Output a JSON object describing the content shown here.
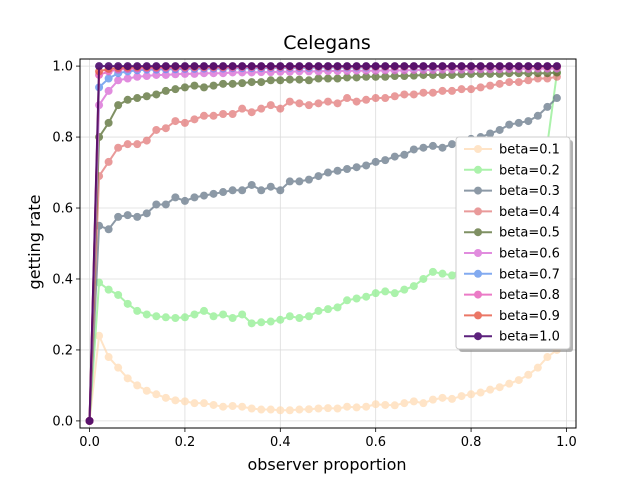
{
  "chart_data": {
    "type": "line",
    "title": "Celegans",
    "xlabel": "observer proportion",
    "ylabel": "getting rate",
    "xlim": [
      -0.02,
      1.02
    ],
    "ylim": [
      -0.02,
      1.02
    ],
    "xticks": [
      "0.0",
      "0.2",
      "0.4",
      "0.6",
      "0.8",
      "1.0"
    ],
    "yticks": [
      "0.0",
      "0.2",
      "0.4",
      "0.6",
      "0.8",
      "1.0"
    ],
    "grid": true,
    "legend_position": "center-right",
    "x": [
      0.0,
      0.02,
      0.04,
      0.06,
      0.08,
      0.1,
      0.12,
      0.14,
      0.16,
      0.18,
      0.2,
      0.22,
      0.24,
      0.26,
      0.28,
      0.3,
      0.32,
      0.34,
      0.36,
      0.38,
      0.4,
      0.42,
      0.44,
      0.46,
      0.48,
      0.5,
      0.52,
      0.54,
      0.56,
      0.58,
      0.6,
      0.62,
      0.64,
      0.66,
      0.68,
      0.7,
      0.72,
      0.74,
      0.76,
      0.78,
      0.8,
      0.82,
      0.84,
      0.86,
      0.88,
      0.9,
      0.92,
      0.94,
      0.96,
      0.98
    ],
    "series": [
      {
        "name": "beta=0.1",
        "color": "#ffdab0",
        "opacity": 0.7,
        "values": [
          0.0,
          0.24,
          0.18,
          0.15,
          0.12,
          0.1,
          0.085,
          0.075,
          0.065,
          0.058,
          0.055,
          0.05,
          0.05,
          0.045,
          0.04,
          0.042,
          0.04,
          0.035,
          0.032,
          0.032,
          0.03,
          0.03,
          0.032,
          0.033,
          0.035,
          0.036,
          0.035,
          0.04,
          0.038,
          0.04,
          0.047,
          0.045,
          0.044,
          0.05,
          0.055,
          0.05,
          0.06,
          0.065,
          0.062,
          0.07,
          0.075,
          0.08,
          0.088,
          0.095,
          0.105,
          0.115,
          0.13,
          0.15,
          0.18,
          0.2
        ]
      },
      {
        "name": "beta=0.2",
        "color": "#90ee90",
        "opacity": 0.75,
        "values": [
          0.0,
          0.39,
          0.37,
          0.355,
          0.33,
          0.31,
          0.3,
          0.295,
          0.292,
          0.29,
          0.292,
          0.3,
          0.31,
          0.295,
          0.3,
          0.29,
          0.3,
          0.275,
          0.278,
          0.28,
          0.285,
          0.295,
          0.29,
          0.295,
          0.31,
          0.315,
          0.32,
          0.34,
          0.345,
          0.35,
          0.36,
          0.365,
          0.36,
          0.37,
          0.38,
          0.4,
          0.42,
          0.415,
          0.41,
          0.43,
          0.45,
          0.47,
          0.48,
          0.5,
          0.52,
          0.55,
          0.6,
          0.7,
          0.78,
          0.98
        ]
      },
      {
        "name": "beta=0.3",
        "color": "#708090",
        "opacity": 0.8,
        "values": [
          0.0,
          0.55,
          0.54,
          0.575,
          0.58,
          0.575,
          0.585,
          0.61,
          0.61,
          0.63,
          0.62,
          0.63,
          0.635,
          0.64,
          0.645,
          0.65,
          0.65,
          0.665,
          0.65,
          0.66,
          0.65,
          0.675,
          0.675,
          0.68,
          0.69,
          0.7,
          0.705,
          0.71,
          0.715,
          0.72,
          0.73,
          0.735,
          0.745,
          0.75,
          0.765,
          0.77,
          0.775,
          0.77,
          0.78,
          0.79,
          0.795,
          0.8,
          0.81,
          0.82,
          0.835,
          0.84,
          0.845,
          0.86,
          0.885,
          0.91
        ]
      },
      {
        "name": "beta=0.4",
        "color": "#e07070",
        "opacity": 0.7,
        "values": [
          0.0,
          0.69,
          0.73,
          0.77,
          0.78,
          0.78,
          0.79,
          0.82,
          0.825,
          0.845,
          0.84,
          0.85,
          0.86,
          0.86,
          0.865,
          0.865,
          0.88,
          0.87,
          0.88,
          0.89,
          0.88,
          0.9,
          0.895,
          0.89,
          0.895,
          0.9,
          0.895,
          0.91,
          0.9,
          0.905,
          0.91,
          0.91,
          0.915,
          0.92,
          0.92,
          0.925,
          0.925,
          0.93,
          0.93,
          0.935,
          0.935,
          0.94,
          0.945,
          0.95,
          0.955,
          0.955,
          0.96,
          0.965,
          0.965,
          0.97
        ]
      },
      {
        "name": "beta=0.5",
        "color": "#556b2f",
        "opacity": 0.75,
        "values": [
          0.0,
          0.8,
          0.84,
          0.89,
          0.905,
          0.91,
          0.915,
          0.92,
          0.93,
          0.935,
          0.94,
          0.945,
          0.94,
          0.945,
          0.95,
          0.95,
          0.952,
          0.955,
          0.955,
          0.96,
          0.96,
          0.962,
          0.962,
          0.96,
          0.965,
          0.965,
          0.965,
          0.968,
          0.968,
          0.97,
          0.97,
          0.97,
          0.972,
          0.972,
          0.973,
          0.975,
          0.975,
          0.975,
          0.975,
          0.977,
          0.978,
          0.978,
          0.978,
          0.978,
          0.98,
          0.98,
          0.98,
          0.98,
          0.98,
          0.982
        ]
      },
      {
        "name": "beta=0.6",
        "color": "#da70d6",
        "opacity": 0.8,
        "values": [
          0.0,
          0.89,
          0.93,
          0.96,
          0.965,
          0.97,
          0.972,
          0.975,
          0.975,
          0.977,
          0.978,
          0.978,
          0.98,
          0.98,
          0.98,
          0.982,
          0.982,
          0.982,
          0.983,
          0.983,
          0.984,
          0.984,
          0.985,
          0.985,
          0.985,
          0.986,
          0.986,
          0.986,
          0.987,
          0.987,
          0.987,
          0.988,
          0.988,
          0.988,
          0.989,
          0.989,
          0.989,
          0.99,
          0.99,
          0.99,
          0.99,
          0.991,
          0.991,
          0.991,
          0.992,
          0.992,
          0.992,
          0.993,
          0.993,
          0.993
        ]
      },
      {
        "name": "beta=0.7",
        "color": "#6495ed",
        "opacity": 0.8,
        "values": [
          0.0,
          0.94,
          0.965,
          0.98,
          0.985,
          0.988,
          0.99,
          0.99,
          0.991,
          0.991,
          0.992,
          0.992,
          0.993,
          0.993,
          0.993,
          0.994,
          0.994,
          0.994,
          0.994,
          0.995,
          0.995,
          0.995,
          0.995,
          0.995,
          0.996,
          0.996,
          0.996,
          0.996,
          0.996,
          0.996,
          0.997,
          0.997,
          0.997,
          0.997,
          0.997,
          0.997,
          0.997,
          0.998,
          0.998,
          0.998,
          0.998,
          0.998,
          0.998,
          0.998,
          0.998,
          0.998,
          0.999,
          0.999,
          0.999,
          0.999
        ]
      },
      {
        "name": "beta=0.8",
        "color": "#e75ab8",
        "opacity": 0.8,
        "values": [
          0.0,
          0.975,
          0.985,
          0.99,
          0.992,
          0.993,
          0.994,
          0.994,
          0.995,
          0.995,
          0.995,
          0.996,
          0.996,
          0.996,
          0.996,
          0.996,
          0.997,
          0.997,
          0.997,
          0.997,
          0.997,
          0.997,
          0.997,
          0.998,
          0.998,
          0.998,
          0.998,
          0.998,
          0.998,
          0.998,
          0.998,
          0.998,
          0.998,
          0.998,
          0.999,
          0.999,
          0.999,
          0.999,
          0.999,
          0.999,
          0.999,
          0.999,
          0.999,
          0.999,
          0.999,
          0.999,
          0.999,
          0.999,
          0.999,
          0.999
        ]
      },
      {
        "name": "beta=0.9",
        "color": "#e8604c",
        "opacity": 0.85,
        "values": [
          0.0,
          0.985,
          0.992,
          0.995,
          0.996,
          0.997,
          0.997,
          0.997,
          0.998,
          0.998,
          0.998,
          0.998,
          0.998,
          0.998,
          0.998,
          0.999,
          0.999,
          0.999,
          0.999,
          0.999,
          0.999,
          0.999,
          0.999,
          0.999,
          0.999,
          0.999,
          0.999,
          0.999,
          0.999,
          0.999,
          0.999,
          0.999,
          0.999,
          0.999,
          0.999,
          0.999,
          0.999,
          0.999,
          0.999,
          0.999,
          0.999,
          0.999,
          0.999,
          0.999,
          0.999,
          0.999,
          0.999,
          0.999,
          0.999,
          0.999
        ]
      },
      {
        "name": "beta=1.0",
        "color": "#4b0a6e",
        "opacity": 0.9,
        "values": [
          0.0,
          1.0,
          1.0,
          1.0,
          1.0,
          1.0,
          1.0,
          1.0,
          1.0,
          1.0,
          1.0,
          1.0,
          1.0,
          1.0,
          1.0,
          1.0,
          1.0,
          1.0,
          1.0,
          1.0,
          1.0,
          1.0,
          1.0,
          1.0,
          1.0,
          1.0,
          1.0,
          1.0,
          1.0,
          1.0,
          1.0,
          1.0,
          1.0,
          1.0,
          1.0,
          1.0,
          1.0,
          1.0,
          1.0,
          1.0,
          1.0,
          1.0,
          1.0,
          1.0,
          1.0,
          1.0,
          1.0,
          1.0,
          1.0,
          1.0
        ]
      }
    ]
  }
}
